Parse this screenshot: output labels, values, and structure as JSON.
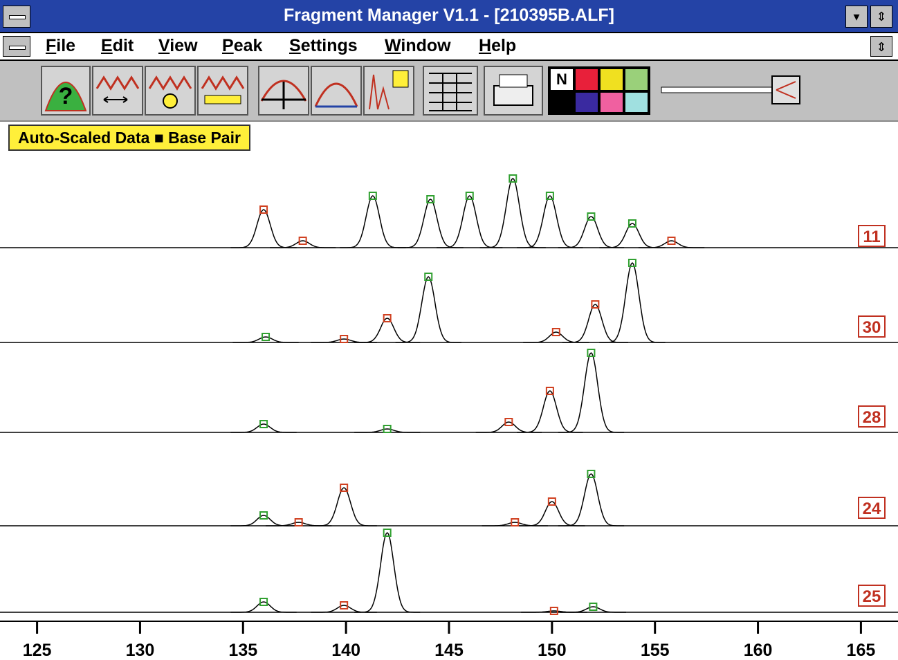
{
  "window": {
    "title": "Fragment Manager V1.1 - [210395B.ALF]"
  },
  "menu": [
    "File",
    "Edit",
    "View",
    "Peak",
    "Settings",
    "Window",
    "Help"
  ],
  "toolbar": {
    "palette_label": "N"
  },
  "status": "Auto-Scaled Data ■ Base Pair",
  "plot": {
    "xlim": [
      123.2,
      166.8
    ],
    "xticks": [
      125,
      130,
      135,
      140,
      145,
      150,
      155,
      160,
      165
    ],
    "lanes": [
      {
        "label": "11",
        "peaks": [
          {
            "bp": 136.0,
            "height": 55,
            "color": "#d04020"
          },
          {
            "bp": 137.9,
            "height": 10,
            "color": "#d04020"
          },
          {
            "bp": 141.3,
            "height": 75,
            "color": "#30a030"
          },
          {
            "bp": 144.1,
            "height": 70,
            "color": "#30a030"
          },
          {
            "bp": 146.0,
            "height": 75,
            "color": "#30a030"
          },
          {
            "bp": 148.1,
            "height": 100,
            "color": "#30a030"
          },
          {
            "bp": 149.9,
            "height": 75,
            "color": "#30a030"
          },
          {
            "bp": 151.9,
            "height": 45,
            "color": "#30a030"
          },
          {
            "bp": 153.9,
            "height": 35,
            "color": "#30a030"
          },
          {
            "bp": 155.8,
            "height": 10,
            "color": "#d04020"
          }
        ]
      },
      {
        "label": "30",
        "peaks": [
          {
            "bp": 136.1,
            "height": 8,
            "color": "#30a030"
          },
          {
            "bp": 139.9,
            "height": 5,
            "color": "#d04020"
          },
          {
            "bp": 142.0,
            "height": 35,
            "color": "#d04020"
          },
          {
            "bp": 144.0,
            "height": 95,
            "color": "#30a030"
          },
          {
            "bp": 150.2,
            "height": 15,
            "color": "#d04020"
          },
          {
            "bp": 152.1,
            "height": 55,
            "color": "#d04020"
          },
          {
            "bp": 153.9,
            "height": 115,
            "color": "#30a030"
          }
        ]
      },
      {
        "label": "28",
        "peaks": [
          {
            "bp": 136.0,
            "height": 12,
            "color": "#30a030"
          },
          {
            "bp": 142.0,
            "height": 5,
            "color": "#30a030"
          },
          {
            "bp": 147.9,
            "height": 15,
            "color": "#d04020"
          },
          {
            "bp": 149.9,
            "height": 60,
            "color": "#d04020"
          },
          {
            "bp": 151.9,
            "height": 115,
            "color": "#30a030"
          }
        ]
      },
      {
        "label": "24",
        "peaks": [
          {
            "bp": 136.0,
            "height": 15,
            "color": "#30a030"
          },
          {
            "bp": 137.7,
            "height": 5,
            "color": "#d04020"
          },
          {
            "bp": 139.9,
            "height": 55,
            "color": "#d04020"
          },
          {
            "bp": 148.2,
            "height": 5,
            "color": "#d04020"
          },
          {
            "bp": 150.0,
            "height": 35,
            "color": "#d04020"
          },
          {
            "bp": 151.9,
            "height": 75,
            "color": "#30a030"
          }
        ]
      },
      {
        "label": "25",
        "peaks": [
          {
            "bp": 136.0,
            "height": 15,
            "color": "#30a030"
          },
          {
            "bp": 139.9,
            "height": 10,
            "color": "#d04020"
          },
          {
            "bp": 142.0,
            "height": 115,
            "color": "#30a030"
          },
          {
            "bp": 150.1,
            "height": 2,
            "color": "#d04020"
          },
          {
            "bp": 152.0,
            "height": 8,
            "color": "#30a030"
          }
        ]
      }
    ]
  }
}
